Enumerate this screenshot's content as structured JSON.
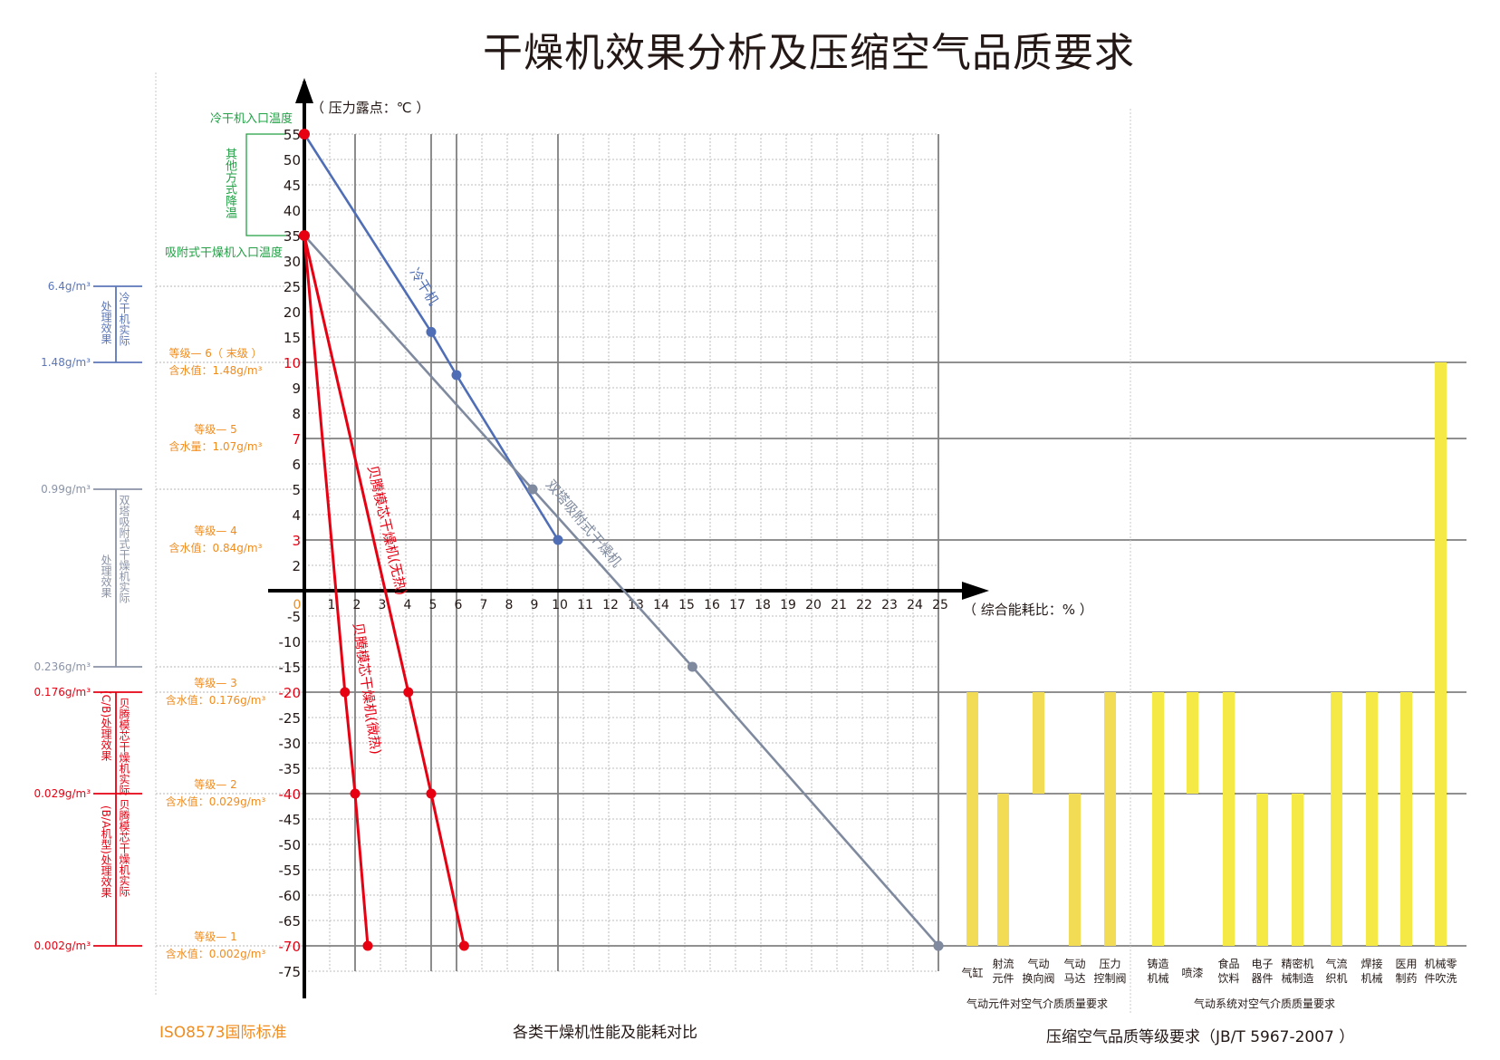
{
  "title": "干燥机效果分析及压缩空气品质要求",
  "footer": {
    "iso_standard": "ISO8573国际标准",
    "comparison_caption": "各类干燥机性能及能耗对比",
    "jb_caption": "压缩空气品质等级要求（JB/T 5967-2007  ）",
    "group1_caption": "气动元件对空气介质质量要求",
    "group2_caption": "气动系统对空气介质质量要求"
  },
  "annotations": {
    "cold_dryer_inlet": "冷干机入口温度",
    "other_cooling": "其他方式降温",
    "adsorption_inlet": "吸附式干燥机入口温度",
    "y_axis_label": "（ 压力露点：℃ ）",
    "x_axis_label": "（ 综合能耗比：% ）"
  },
  "left_scale": {
    "markers": [
      {
        "label": "6.4g/m³",
        "value": 25,
        "color": "#5b76b8"
      },
      {
        "label": "1.48g/m³",
        "value": 10,
        "color": "#5b76b8"
      },
      {
        "label": "0.99g/m³",
        "value": 5,
        "color": "#8a93a6"
      },
      {
        "label": "0.236g/m³",
        "value": -15,
        "color": "#8a93a6"
      },
      {
        "label": "0.176g/m³",
        "value": -20,
        "color": "#e60012"
      },
      {
        "label": "0.029g/m³",
        "value": -40,
        "color": "#e60012"
      },
      {
        "label": "0.002g/m³",
        "value": -70,
        "color": "#e60012"
      }
    ],
    "brackets": [
      {
        "outer": "处理效果",
        "inner": "冷干机实际",
        "from": 25,
        "to": 10,
        "color": "#5b76b8"
      },
      {
        "outer": "处理效果",
        "inner": "双塔吸附式干燥机实际",
        "from": 5,
        "to": -15,
        "color": "#8a93a6"
      },
      {
        "outer": "(C/B)处理效果",
        "inner": "贝腾模芯干燥机实际",
        "from": -20,
        "to": -40,
        "color": "#e60012"
      },
      {
        "outer": "(B/A机型)处理效果",
        "inner": "贝腾模芯干燥机实际",
        "from": -40,
        "to": -70,
        "color": "#e60012"
      }
    ]
  },
  "grades": [
    {
      "title": "等级— 6（ 末级 ）",
      "content": "含水值：1.48g/m³",
      "value": 10
    },
    {
      "title": "等级— 5",
      "content": "含水量：1.07g/m³",
      "value": 7
    },
    {
      "title": "等级— 4",
      "content": "含水值：0.84g/m³",
      "value": 3
    },
    {
      "title": "等级— 3",
      "content": "含水值：0.176g/m³",
      "value": -20
    },
    {
      "title": "等级— 2",
      "content": "含水值：0.029g/m³",
      "value": -40
    },
    {
      "title": "等级— 1",
      "content": "含水值：0.002g/m³",
      "value": -70
    }
  ],
  "colors": {
    "cold_dryer": "#4f6eb5",
    "twin_tower": "#7f8a9e",
    "red": "#e60012",
    "green": "#22a045",
    "orange": "#f08c1e",
    "bar_group1": "#f2dc55",
    "bar_group2": "#f5ea45",
    "grid_major": "#808080",
    "grid_minor": "#bdbdbd"
  },
  "chart_data": [
    {
      "type": "line",
      "title": "各类干燥机性能及能耗对比",
      "xlabel": "综合能耗比：%",
      "ylabel": "压力露点：℃",
      "xlim": [
        0,
        25
      ],
      "ylim": [
        -75,
        55
      ],
      "x_ticks": [
        0,
        1,
        2,
        3,
        4,
        5,
        6,
        7,
        8,
        9,
        10,
        11,
        12,
        13,
        14,
        15,
        16,
        17,
        18,
        19,
        20,
        21,
        22,
        23,
        24,
        25
      ],
      "y_ticks": [
        55,
        50,
        45,
        40,
        35,
        30,
        25,
        20,
        15,
        10,
        9,
        8,
        7,
        6,
        5,
        4,
        3,
        2,
        0,
        -5,
        -10,
        -15,
        -20,
        -25,
        -30,
        -35,
        -40,
        -45,
        -50,
        -55,
        -60,
        -65,
        -70,
        -75
      ],
      "y_ticks_highlighted": [
        10,
        7,
        3,
        -20,
        -40,
        -70
      ],
      "grid": true,
      "series": [
        {
          "name": "冷干机",
          "color": "#4f6eb5",
          "points": [
            [
              0,
              55
            ],
            [
              5,
              16
            ],
            [
              6,
              9.5
            ],
            [
              10,
              3
            ]
          ]
        },
        {
          "name": "双塔吸附式干燥机",
          "color": "#7f8a9e",
          "points": [
            [
              0,
              35
            ],
            [
              9,
              5
            ],
            [
              15.3,
              -15
            ],
            [
              25,
              -70
            ]
          ]
        },
        {
          "name": "贝腾模芯干燥机(无热)",
          "color": "#e60012",
          "points": [
            [
              0,
              35
            ],
            [
              4.1,
              -20
            ],
            [
              5,
              -40
            ],
            [
              6.3,
              -70
            ]
          ]
        },
        {
          "name": "贝腾模芯干燥机(微热)",
          "color": "#e60012",
          "points": [
            [
              0,
              35
            ],
            [
              1.6,
              -20
            ],
            [
              2,
              -40
            ],
            [
              2.5,
              -70
            ]
          ]
        }
      ]
    },
    {
      "type": "bar",
      "title": "压缩空气品质等级要求（JB/T 5967-2007）",
      "note": "bars span from top dew point to bottom dew point (℃)",
      "groups": [
        {
          "name": "气动元件对空气介质质量要求",
          "categories": [
            {
              "label": "气缸",
              "top": -20,
              "bottom": -70
            },
            {
              "label": "射流元件",
              "top": -40,
              "bottom": -70
            },
            {
              "label": "气动换向阀",
              "top": -20,
              "bottom": -40
            },
            {
              "label": "气动马达",
              "top": -40,
              "bottom": -70
            },
            {
              "label": "压力控制阀",
              "top": -20,
              "bottom": -70
            }
          ]
        },
        {
          "name": "气动系统对空气介质质量要求",
          "categories": [
            {
              "label": "铸造机械",
              "top": -20,
              "bottom": -70
            },
            {
              "label": "喷漆",
              "top": -20,
              "bottom": -40
            },
            {
              "label": "食品饮料",
              "top": -20,
              "bottom": -70
            },
            {
              "label": "电子器件",
              "top": -40,
              "bottom": -70
            },
            {
              "label": "精密机械制造",
              "top": -40,
              "bottom": -70
            },
            {
              "label": "气流织机",
              "top": -20,
              "bottom": -70
            },
            {
              "label": "焊接机械",
              "top": -20,
              "bottom": -70
            },
            {
              "label": "医用制药",
              "top": -20,
              "bottom": -70
            },
            {
              "label": "机械零件吹洗",
              "top": 10,
              "bottom": -70
            }
          ]
        }
      ]
    }
  ],
  "bar_labels": [
    [
      "气缸"
    ],
    [
      "射流",
      "元件"
    ],
    [
      "气动",
      "换向阀"
    ],
    [
      "气动",
      "马达"
    ],
    [
      "压力",
      "控制阀"
    ],
    [
      "铸造",
      "机械"
    ],
    [
      "喷漆"
    ],
    [
      "食品",
      "饮料"
    ],
    [
      "电子",
      "器件"
    ],
    [
      "精密机",
      "械制造"
    ],
    [
      "气流",
      "织机"
    ],
    [
      "焊接",
      "机械"
    ],
    [
      "医用",
      "制药"
    ],
    [
      "机械零",
      "件吹洗"
    ]
  ],
  "series_labels": {
    "cold_dryer": "冷干机",
    "twin_tower": "双塔吸附式干燥机",
    "heatless": "贝腾模芯干燥机(无热)",
    "micro_heat": "贝腾模芯干燥机(微热)"
  }
}
